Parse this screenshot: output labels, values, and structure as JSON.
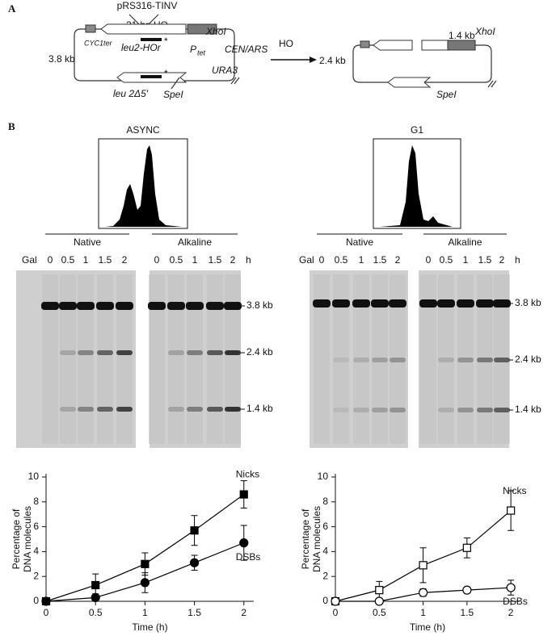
{
  "panel_a": {
    "label": "A",
    "plasmid": "pRS316-TINV",
    "site": "21-bp HO",
    "xho_left": "XhoI",
    "cyc": "CYC1ter",
    "leu2": "leu2-HOr",
    "star_top": "*",
    "ptet": "P",
    "ptet_sub": "tet",
    "cen": "CEN/ARS",
    "size_left": "3.8 kb",
    "ura3": "URA3",
    "leu2d": "leu 2Δ5′",
    "star_bottom": "*",
    "spe_left": "SpeI",
    "arrow": "HO",
    "size_right": "2.4 kb",
    "frag": "1.4 kb",
    "xho_right": "XhoI",
    "spe_right": "SpeI"
  },
  "panel_b": {
    "label": "B",
    "facs": [
      "ASYNC",
      "G1"
    ],
    "gel_groups": [
      "Native",
      "Alkaline"
    ],
    "gal": "Gal",
    "lanes": [
      "0",
      "0.5",
      "1",
      "1.5",
      "2"
    ],
    "unit": "h",
    "markers": [
      "3.8 kb",
      "2.4 kb",
      "1.4 kb"
    ]
  },
  "chart_data": [
    {
      "type": "line",
      "xlabel": "Time (h)",
      "ylabel": [
        "Percentage of",
        "DNA molecules"
      ],
      "x": [
        0,
        0.5,
        1,
        1.5,
        2
      ],
      "xlim": [
        0,
        2.1
      ],
      "xticks": [
        0,
        0.5,
        1,
        1.5,
        2
      ],
      "ylim": [
        0,
        10
      ],
      "yticks": [
        0,
        2,
        4,
        6,
        8,
        10
      ],
      "series": [
        {
          "name": "Nicks",
          "color": "#000000",
          "marker": "square",
          "filled": true,
          "values": [
            0,
            1.3,
            3.0,
            5.7,
            8.6
          ],
          "errors": [
            0,
            0.9,
            0.9,
            1.2,
            1.1
          ]
        },
        {
          "name": "DSBs",
          "color": "#000000",
          "marker": "circle",
          "filled": true,
          "values": [
            0,
            0.3,
            1.5,
            3.1,
            4.7
          ],
          "errors": [
            0,
            0.3,
            0.8,
            0.6,
            1.4
          ]
        }
      ]
    },
    {
      "type": "line",
      "xlabel": "Time (h)",
      "ylabel": [
        "Percentage of",
        "DNA molecules"
      ],
      "x": [
        0,
        0.5,
        1,
        1.5,
        2
      ],
      "xlim": [
        0,
        2.1
      ],
      "xticks": [
        0,
        0.5,
        1,
        1.5,
        2
      ],
      "ylim": [
        0,
        10
      ],
      "yticks": [
        0,
        2,
        4,
        6,
        8,
        10
      ],
      "series": [
        {
          "name": "Nicks",
          "color": "#000000",
          "marker": "square",
          "filled": false,
          "values": [
            0,
            0.9,
            2.9,
            4.3,
            7.3
          ],
          "errors": [
            0,
            0.7,
            1.4,
            0.8,
            1.6
          ]
        },
        {
          "name": "DSBs",
          "color": "#000000",
          "marker": "circle",
          "filled": false,
          "values": [
            0,
            0,
            0.7,
            0.9,
            1.1
          ],
          "errors": [
            0,
            0,
            0.3,
            0.2,
            0.6
          ]
        }
      ]
    }
  ]
}
